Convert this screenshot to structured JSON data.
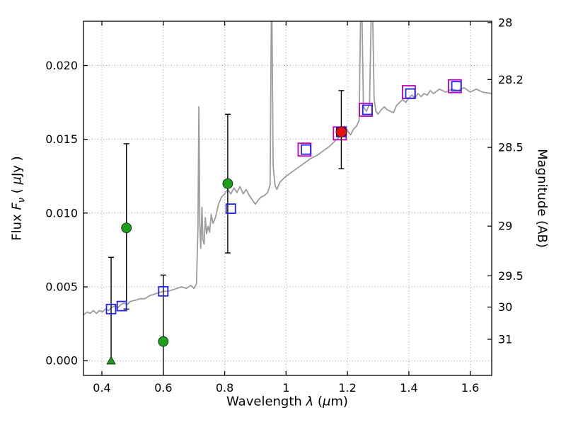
{
  "figure": {
    "labels": {
      "xlabel_prefix": "Wavelength ",
      "xlabel_lambda": "λ",
      "xlabel_mid": " (",
      "xlabel_mu": "μ",
      "xlabel_suffix": "m)",
      "ylabel_prefix": "Flux ",
      "ylabel_F": "F",
      "ylabel_nu": "ν",
      "ylabel_mid": " ( ",
      "ylabel_mu": "μ",
      "ylabel_suffix": "Jy )",
      "right_label": "Magnitude (AB)"
    }
  },
  "chart_data": {
    "type": "line",
    "title": "",
    "xlabel": "Wavelength λ (μm)",
    "ylabel": "Flux Fν ( μJy )",
    "ylabel_right": "Magnitude (AB)",
    "xlim": [
      0.34,
      1.67
    ],
    "ylim": [
      -0.001,
      0.023
    ],
    "grid": "dotted",
    "legend": "none",
    "x_ticks": [
      {
        "v": 0.4,
        "label": "0.4"
      },
      {
        "v": 0.6,
        "label": "0.6"
      },
      {
        "v": 0.8,
        "label": "0.8"
      },
      {
        "v": 1.0,
        "label": "1"
      },
      {
        "v": 1.2,
        "label": "1.2"
      },
      {
        "v": 1.4,
        "label": "1.4"
      },
      {
        "v": 1.6,
        "label": "1.6"
      }
    ],
    "y_ticks": [
      {
        "v": 0.0,
        "label": "0.000"
      },
      {
        "v": 0.005,
        "label": "0.005"
      },
      {
        "v": 0.01,
        "label": "0.010"
      },
      {
        "v": 0.015,
        "label": "0.015"
      },
      {
        "v": 0.02,
        "label": "0.020"
      }
    ],
    "right_ticks": [
      {
        "v": 0.02291,
        "label": "28"
      },
      {
        "v": 0.01905,
        "label": "28.2"
      },
      {
        "v": 0.01445,
        "label": "28.5"
      },
      {
        "v": 0.00912,
        "label": "29"
      },
      {
        "v": 0.00575,
        "label": "29.5"
      },
      {
        "v": 0.00363,
        "label": "30"
      },
      {
        "v": 0.00145,
        "label": "31"
      }
    ],
    "colors": {
      "spectrum": "#9c9c9c",
      "observed": "#1ca01c",
      "model": "#2222e6",
      "observed_ir": "#bf00bf",
      "highlight": "#e31212",
      "errorbar": "#000000",
      "grid": "#999999"
    },
    "series": [
      {
        "name": "model-spectrum",
        "kind": "line",
        "color": "#9c9c9c",
        "points": [
          [
            0.34,
            0.0031
          ],
          [
            0.352,
            0.0033
          ],
          [
            0.362,
            0.0032
          ],
          [
            0.372,
            0.0034
          ],
          [
            0.382,
            0.0032
          ],
          [
            0.392,
            0.0034
          ],
          [
            0.402,
            0.0033
          ],
          [
            0.412,
            0.0035
          ],
          [
            0.422,
            0.0034
          ],
          [
            0.432,
            0.0036
          ],
          [
            0.442,
            0.0037
          ],
          [
            0.452,
            0.0036
          ],
          [
            0.462,
            0.0038
          ],
          [
            0.472,
            0.0039
          ],
          [
            0.482,
            0.0038
          ],
          [
            0.492,
            0.004
          ],
          [
            0.51,
            0.0041
          ],
          [
            0.525,
            0.0042
          ],
          [
            0.54,
            0.0042
          ],
          [
            0.555,
            0.0044
          ],
          [
            0.57,
            0.0045
          ],
          [
            0.585,
            0.0046
          ],
          [
            0.6,
            0.0047
          ],
          [
            0.615,
            0.0047
          ],
          [
            0.63,
            0.0048
          ],
          [
            0.645,
            0.0049
          ],
          [
            0.66,
            0.005
          ],
          [
            0.675,
            0.0049
          ],
          [
            0.69,
            0.0051
          ],
          [
            0.7,
            0.0049
          ],
          [
            0.708,
            0.0052
          ],
          [
            0.713,
            0.009
          ],
          [
            0.716,
            0.0172
          ],
          [
            0.719,
            0.0092
          ],
          [
            0.722,
            0.0076
          ],
          [
            0.726,
            0.0104
          ],
          [
            0.729,
            0.0082
          ],
          [
            0.733,
            0.0079
          ],
          [
            0.737,
            0.0097
          ],
          [
            0.741,
            0.0086
          ],
          [
            0.746,
            0.0091
          ],
          [
            0.751,
            0.0087
          ],
          [
            0.756,
            0.0099
          ],
          [
            0.762,
            0.0093
          ],
          [
            0.77,
            0.0097
          ],
          [
            0.78,
            0.0106
          ],
          [
            0.79,
            0.0111
          ],
          [
            0.8,
            0.0113
          ],
          [
            0.81,
            0.0116
          ],
          [
            0.82,
            0.0113
          ],
          [
            0.83,
            0.0117
          ],
          [
            0.84,
            0.0114
          ],
          [
            0.85,
            0.0118
          ],
          [
            0.86,
            0.0113
          ],
          [
            0.87,
            0.0116
          ],
          [
            0.88,
            0.0112
          ],
          [
            0.89,
            0.0109
          ],
          [
            0.9,
            0.0106
          ],
          [
            0.91,
            0.0109
          ],
          [
            0.92,
            0.0111
          ],
          [
            0.93,
            0.0112
          ],
          [
            0.94,
            0.0114
          ],
          [
            0.948,
            0.0119
          ],
          [
            0.953,
            0.0262
          ],
          [
            0.958,
            0.0132
          ],
          [
            0.964,
            0.0119
          ],
          [
            0.97,
            0.0116
          ],
          [
            0.98,
            0.0121
          ],
          [
            0.99,
            0.0123
          ],
          [
            1.0,
            0.0125
          ],
          [
            1.02,
            0.0128
          ],
          [
            1.04,
            0.0131
          ],
          [
            1.06,
            0.0134
          ],
          [
            1.08,
            0.0137
          ],
          [
            1.1,
            0.0139
          ],
          [
            1.12,
            0.0142
          ],
          [
            1.14,
            0.0145
          ],
          [
            1.16,
            0.0149
          ],
          [
            1.17,
            0.0151
          ],
          [
            1.18,
            0.0153
          ],
          [
            1.19,
            0.0159
          ],
          [
            1.2,
            0.0156
          ],
          [
            1.21,
            0.0153
          ],
          [
            1.22,
            0.0157
          ],
          [
            1.23,
            0.0159
          ],
          [
            1.238,
            0.0163
          ],
          [
            1.245,
            0.0265
          ],
          [
            1.252,
            0.0172
          ],
          [
            1.262,
            0.0169
          ],
          [
            1.272,
            0.0174
          ],
          [
            1.28,
            0.0262
          ],
          [
            1.287,
            0.0177
          ],
          [
            1.293,
            0.0169
          ],
          [
            1.3,
            0.0167
          ],
          [
            1.31,
            0.017
          ],
          [
            1.32,
            0.0172
          ],
          [
            1.33,
            0.017
          ],
          [
            1.34,
            0.0169
          ],
          [
            1.35,
            0.0168
          ],
          [
            1.36,
            0.0173
          ],
          [
            1.37,
            0.0175
          ],
          [
            1.38,
            0.0177
          ],
          [
            1.39,
            0.0175
          ],
          [
            1.4,
            0.0178
          ],
          [
            1.41,
            0.018
          ],
          [
            1.42,
            0.0178
          ],
          [
            1.43,
            0.0181
          ],
          [
            1.44,
            0.0179
          ],
          [
            1.45,
            0.0181
          ],
          [
            1.46,
            0.018
          ],
          [
            1.47,
            0.0183
          ],
          [
            1.48,
            0.0181
          ],
          [
            1.5,
            0.0184
          ],
          [
            1.52,
            0.0182
          ],
          [
            1.54,
            0.0184
          ],
          [
            1.56,
            0.0183
          ],
          [
            1.58,
            0.0185
          ],
          [
            1.6,
            0.0182
          ],
          [
            1.62,
            0.0184
          ],
          [
            1.64,
            0.0182
          ],
          [
            1.67,
            0.0181
          ]
        ]
      },
      {
        "name": "upper-limit",
        "kind": "scatter",
        "marker": "triangle-up",
        "color": "#1ca01c",
        "size": 12,
        "points": [
          {
            "x": 0.43,
            "y": 0.0,
            "err_hi": 0.007
          }
        ]
      },
      {
        "name": "observed-photometry",
        "kind": "scatter",
        "marker": "circle",
        "color": "#1ca01c",
        "size": 14,
        "points": [
          {
            "x": 0.48,
            "y": 0.009,
            "err_lo": 0.0055,
            "err_hi": 0.0057
          },
          {
            "x": 0.6,
            "y": 0.0013,
            "err_lo": 0.0045,
            "err_hi": 0.0045
          },
          {
            "x": 0.81,
            "y": 0.012,
            "err_lo": 0.0047,
            "err_hi": 0.0047
          }
        ]
      },
      {
        "name": "observed-photometry-ir",
        "kind": "scatter",
        "marker": "open-square",
        "color": "#bf00bf",
        "size": 18,
        "points": [
          [
            1.06,
            0.0143
          ],
          [
            1.175,
            0.0154
          ],
          [
            1.26,
            0.017
          ],
          [
            1.4,
            0.0182
          ],
          [
            1.55,
            0.0186
          ]
        ]
      },
      {
        "name": "model-photometry",
        "kind": "scatter",
        "marker": "open-square",
        "color": "#2222e6",
        "size": 13,
        "points": [
          [
            0.43,
            0.0035
          ],
          [
            0.465,
            0.0037
          ],
          [
            0.6,
            0.0047
          ],
          [
            0.82,
            0.0103
          ],
          [
            1.065,
            0.0143
          ],
          [
            1.18,
            0.0155
          ],
          [
            1.265,
            0.017
          ],
          [
            1.405,
            0.0181
          ],
          [
            1.555,
            0.0186
          ]
        ]
      },
      {
        "name": "highlighted-point",
        "kind": "scatter",
        "marker": "circle",
        "color": "#e31212",
        "size": 15,
        "points": [
          {
            "x": 1.18,
            "y": 0.0155,
            "err_lo": 0.0025,
            "err_hi": 0.0028
          }
        ]
      }
    ]
  }
}
